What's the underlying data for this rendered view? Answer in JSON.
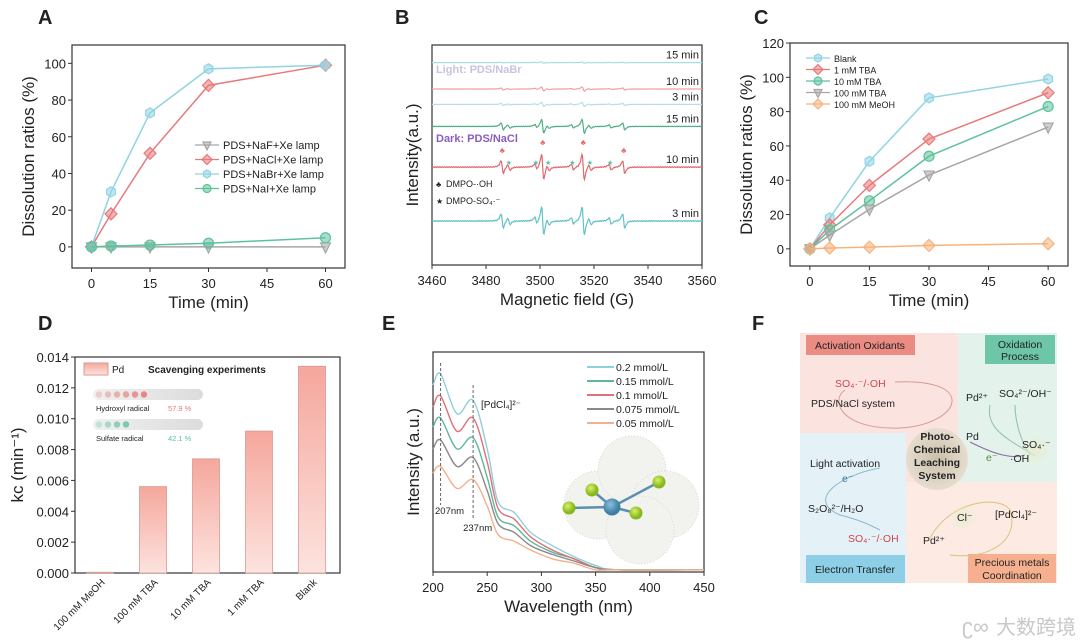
{
  "watermark": "大数跨境",
  "chart_data": [
    {
      "panel": "A",
      "type": "line",
      "xlabel": "Time (min)",
      "ylabel": "Dissolution ratios (%)",
      "xlim": [
        -5,
        65
      ],
      "ylim": [
        -11.5,
        110
      ],
      "x_ticks": [
        0,
        15,
        30,
        45,
        60
      ],
      "y_ticks": [
        0,
        20,
        40,
        60,
        80,
        100
      ],
      "x": [
        0,
        5,
        15,
        30,
        60
      ],
      "legend_position": "center-right",
      "series": [
        {
          "name": "PDS+NaF+Xe lamp",
          "marker": "triangle-down",
          "color": "#a6a6a6",
          "values": [
            0,
            0,
            0,
            0,
            0
          ]
        },
        {
          "name": "PDS+NaCl+Xe lamp",
          "marker": "diamond",
          "color": "#e8797a",
          "values": [
            0,
            18,
            51,
            88,
            99
          ]
        },
        {
          "name": "PDS+NaBr+Xe lamp",
          "marker": "hexagon",
          "color": "#8fd4e2",
          "values": [
            0,
            30,
            73,
            97,
            99
          ]
        },
        {
          "name": "PDS+NaI+Xe lamp",
          "marker": "circle",
          "color": "#5ec29c",
          "values": [
            0,
            0.5,
            1,
            2,
            5
          ]
        }
      ]
    },
    {
      "panel": "B",
      "type": "line",
      "xlabel": "Magnetic field (G)",
      "ylabel": "Intensity(a.u.)",
      "xlim": [
        3460,
        3560
      ],
      "ylim": [
        0,
        10
      ],
      "x_ticks": [
        3460,
        3480,
        3500,
        3520,
        3540,
        3560
      ],
      "group_labels": {
        "light": "Light: PDS/NaBr",
        "dark": "Dark: PDS/NaCl"
      },
      "group_colors": {
        "light": "#c9c3e0",
        "dark": "#8a5cc0"
      },
      "markers_legend": [
        {
          "symbol": "♣",
          "name": "DMPO-·OH"
        },
        {
          "symbol": "★",
          "name": "DMPO-SO₄·⁻"
        }
      ],
      "oh_peaks": [
        3486,
        3501,
        3516,
        3531
      ],
      "oh_rel": [
        1,
        2,
        2,
        1
      ],
      "so4_peaks": [
        3488.5,
        3498.5,
        3503,
        3512,
        3518.5,
        3526
      ],
      "series": [
        {
          "name": "15 min",
          "group": "light",
          "color": "#a9dde6",
          "offset": 9.2,
          "amp": 0.05
        },
        {
          "name": "10 min",
          "group": "light",
          "color": "#f0a2a2",
          "offset": 8.0,
          "amp": 0.15
        },
        {
          "name": "3 min",
          "group": "light",
          "color": "#b9dde6",
          "offset": 7.3,
          "amp": 0.15
        },
        {
          "name": "15 min",
          "group": "dark",
          "color": "#4fae84",
          "offset": 6.3,
          "amp": 0.5
        },
        {
          "name": "10 min",
          "group": "dark",
          "color": "#e2686e",
          "offset": 4.45,
          "amp": 0.9
        },
        {
          "name": "3 min",
          "group": "dark",
          "color": "#62c2c5",
          "offset": 2.0,
          "amp": 1.0
        }
      ]
    },
    {
      "panel": "C",
      "type": "line",
      "xlabel": "Time (min)",
      "ylabel": "Dissolution ratios (%)",
      "xlim": [
        -5,
        65
      ],
      "ylim": [
        -10,
        120
      ],
      "x_ticks": [
        0,
        15,
        30,
        45,
        60
      ],
      "y_ticks": [
        0,
        20,
        40,
        60,
        80,
        100,
        120
      ],
      "x": [
        0,
        5,
        15,
        30,
        60
      ],
      "legend_position": "top-left",
      "series": [
        {
          "name": "Blank",
          "marker": "hexagon",
          "color": "#8fd4e2",
          "values": [
            0,
            18,
            51,
            88,
            99
          ]
        },
        {
          "name": "1 mM TBA",
          "marker": "diamond",
          "color": "#e8797a",
          "values": [
            0,
            14,
            37,
            64,
            91
          ]
        },
        {
          "name": "10 mM TBA",
          "marker": "circle",
          "color": "#5ec29c",
          "values": [
            0,
            11,
            28,
            54,
            83
          ]
        },
        {
          "name": "100 mM TBA",
          "marker": "triangle-down",
          "color": "#a6a6a6",
          "values": [
            0,
            8,
            23,
            43,
            71
          ]
        },
        {
          "name": "100 mM MeOH",
          "marker": "diamond",
          "color": "#f6b27c",
          "values": [
            0,
            0.5,
            1,
            2,
            3
          ]
        }
      ]
    },
    {
      "panel": "D",
      "type": "bar",
      "xlabel": "",
      "ylabel": "kc (min⁻¹)",
      "ylim": [
        0,
        0.014
      ],
      "y_ticks": [
        0.0,
        0.002,
        0.004,
        0.006,
        0.008,
        0.01,
        0.012,
        0.014
      ],
      "categories": [
        "100 mM MeOH",
        "100 mM TBA",
        "10 mM TBA",
        "1 mM TBA",
        "Blank"
      ],
      "values": [
        5e-05,
        0.0056,
        0.0074,
        0.0092,
        0.0134
      ],
      "legend": "Pd",
      "inset": {
        "title": "Scavenging experiments",
        "items": [
          {
            "name": "Hydroxyl radical",
            "value": "57.9 %",
            "percent": 57.9,
            "color": "#e8797a"
          },
          {
            "name": "Sulfate radical",
            "value": "42.1 %",
            "percent": 42.1,
            "color": "#5ec29c"
          }
        ]
      }
    },
    {
      "panel": "E",
      "type": "line",
      "xlabel": "Wavelength (nm)",
      "ylabel": "Intensity (a.u.)",
      "xlim": [
        200,
        450
      ],
      "ylim": [
        0,
        1
      ],
      "x_ticks": [
        200,
        250,
        300,
        350,
        400,
        450
      ],
      "annotations": [
        "207nm",
        "237nm",
        "[PdCl₄]²⁻"
      ],
      "peak_lines": [
        207,
        237
      ],
      "x": [
        200,
        207,
        222,
        237,
        250,
        260,
        275,
        290,
        310,
        330,
        350,
        370,
        450
      ],
      "legend_position": "top-right",
      "series": [
        {
          "name": "0.2 mmol/L",
          "color": "#8fd0dc",
          "values": [
            0.85,
            0.9,
            0.72,
            0.78,
            0.56,
            0.32,
            0.27,
            0.18,
            0.12,
            0.07,
            0.03,
            0.01,
            0.01
          ]
        },
        {
          "name": "0.15 mmol/L",
          "color": "#5eb79a",
          "values": [
            0.66,
            0.7,
            0.56,
            0.61,
            0.43,
            0.25,
            0.21,
            0.14,
            0.09,
            0.06,
            0.02,
            0.01,
            0.01
          ]
        },
        {
          "name": "0.1 mmol/L",
          "color": "#e07078",
          "values": [
            0.75,
            0.8,
            0.64,
            0.7,
            0.5,
            0.29,
            0.24,
            0.16,
            0.1,
            0.06,
            0.02,
            0.01,
            0.01
          ]
        },
        {
          "name": "0.075 mmol/L",
          "color": "#8a8a8a",
          "values": [
            0.56,
            0.6,
            0.48,
            0.52,
            0.37,
            0.22,
            0.18,
            0.12,
            0.08,
            0.05,
            0.02,
            0.01,
            0.01
          ]
        },
        {
          "name": "0.05 mmol/L",
          "color": "#f2b08c",
          "values": [
            0.45,
            0.48,
            0.38,
            0.42,
            0.3,
            0.17,
            0.14,
            0.1,
            0.06,
            0.04,
            0.01,
            0.01,
            0.01
          ]
        }
      ]
    }
  ],
  "panels": {
    "a": "A",
    "b": "B",
    "c": "C",
    "d": "D",
    "e": "E",
    "f": "F"
  },
  "diagram_f": {
    "center": [
      "Photo-",
      "Chemical",
      "Leaching",
      "System"
    ],
    "activation_oxidants": "Activation Oxidants",
    "oxidation_process": [
      "Oxidation",
      "Process"
    ],
    "electron_transfer": "Electron Transfer",
    "precious_metals": [
      "Precious metals",
      "Coordination"
    ],
    "tl_radicals": "SO₄·⁻/·OH",
    "tl_system": "PDS/NaCl system",
    "tr_pd2": "Pd²⁺",
    "tr_so4oh": "SO₄²⁻/OH⁻",
    "tr_pd": "Pd",
    "tr_so4rad": "SO₄·⁻",
    "tr_e": "e⁻",
    "tr_oh": "·OH",
    "bl_light": "Light activation",
    "bl_e": "e⁻",
    "bl_s2o8": "S₂O₈²⁻/H₂O",
    "bl_radicals": "SO₄·⁻/·OH",
    "br_cl": "Cl⁻",
    "br_pdcl4": "[PdCl₄]²⁻",
    "br_pd2": "Pd²⁺"
  }
}
